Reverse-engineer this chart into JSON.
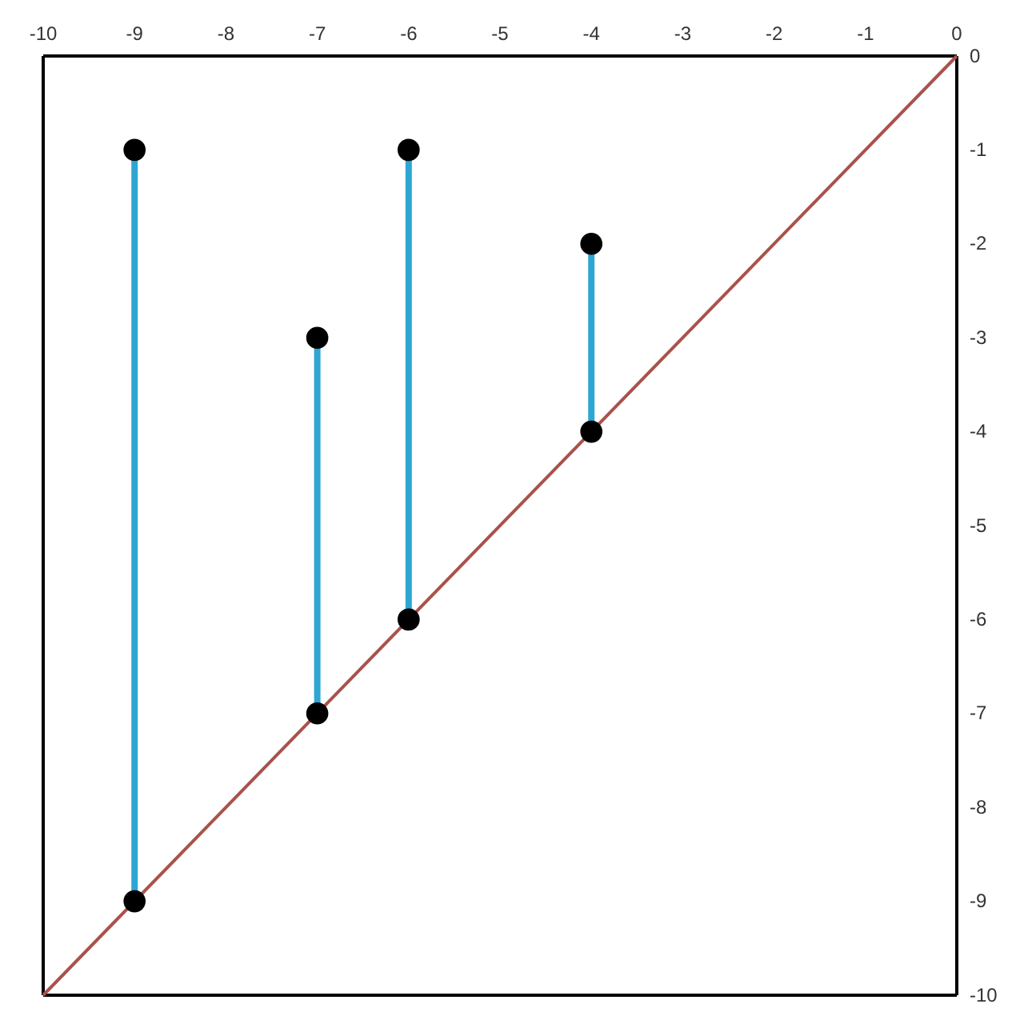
{
  "chart_data": {
    "type": "scatter",
    "xlim": [
      -10,
      0
    ],
    "ylim": [
      -10,
      0
    ],
    "xticks": [
      -10,
      -9,
      -8,
      -7,
      -6,
      -5,
      -4,
      -3,
      -2,
      -1,
      0
    ],
    "yticks": [
      -10,
      -9,
      -8,
      -7,
      -6,
      -5,
      -4,
      -3,
      -2,
      -1,
      0
    ],
    "grid": false,
    "series": [
      {
        "type": "line",
        "color": "#a9524b",
        "marker": "none",
        "x": [
          -10,
          0
        ],
        "values": [
          -10,
          0
        ]
      },
      {
        "type": "line",
        "color": "#2ea6d2",
        "marker": "none",
        "x": [
          -9,
          -9
        ],
        "values": [
          -9,
          -1
        ]
      },
      {
        "type": "line",
        "color": "#2ea6d2",
        "marker": "none",
        "x": [
          -7,
          -7
        ],
        "values": [
          -7,
          -3
        ]
      },
      {
        "type": "line",
        "color": "#2ea6d2",
        "marker": "none",
        "x": [
          -6,
          -6
        ],
        "values": [
          -6,
          -1
        ]
      },
      {
        "type": "line",
        "color": "#2ea6d2",
        "marker": "none",
        "x": [
          -4,
          -4
        ],
        "values": [
          -4,
          -2
        ]
      },
      {
        "color": "#000000",
        "marker": "circle",
        "x": [
          -9,
          -7,
          -6,
          -4,
          -9,
          -7,
          -6,
          -4
        ],
        "values": [
          -1,
          -3,
          -1,
          -2,
          -9,
          -7,
          -6,
          -4
        ]
      }
    ]
  }
}
